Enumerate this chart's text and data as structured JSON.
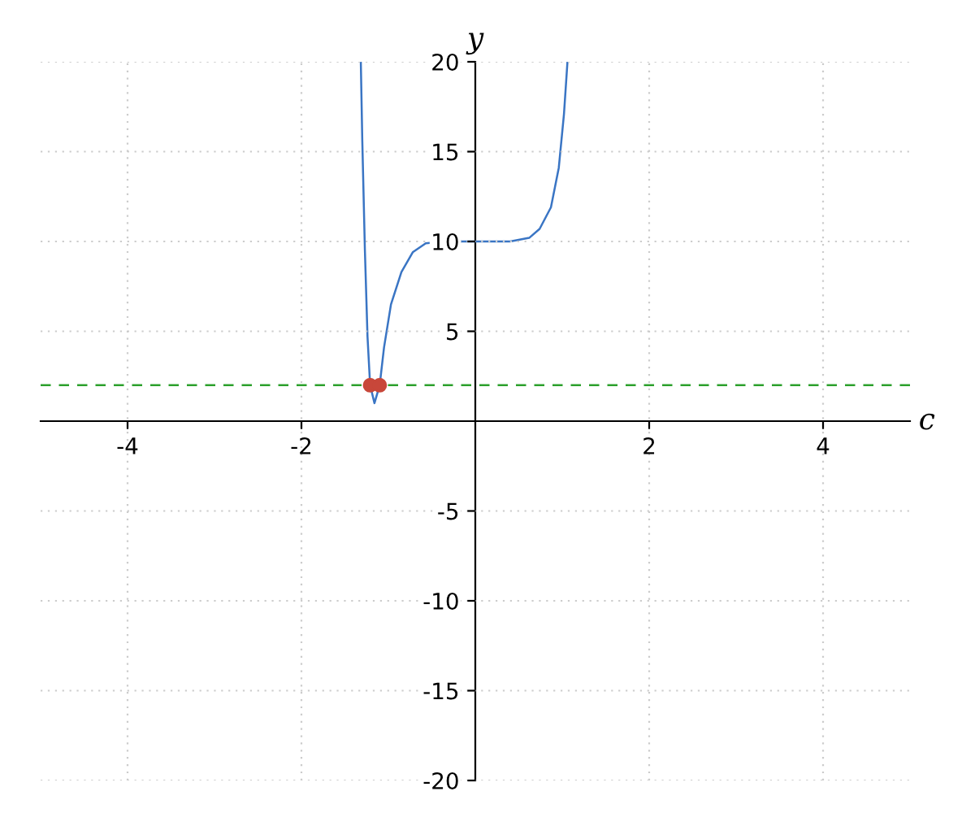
{
  "chart_data": {
    "type": "line",
    "xlabel": "c",
    "ylabel": "y",
    "xlim": [
      -5,
      5
    ],
    "ylim": [
      -20,
      20
    ],
    "xticks": [
      -4,
      -2,
      2,
      4
    ],
    "yticks": [
      -20,
      -15,
      -10,
      -5,
      5,
      10,
      15,
      20
    ],
    "grid": true,
    "series": [
      {
        "color": "#3a75c4",
        "x": [
          -1.317,
          -1.3,
          -1.27,
          -1.24,
          -1.21,
          -1.16,
          -1.1,
          -1.05,
          -0.97,
          -0.85,
          -0.72,
          -0.57,
          -0.35,
          0,
          0.4,
          0.62,
          0.74,
          0.87,
          0.96,
          1.02,
          1.06
        ],
        "values": [
          20,
          15.6,
          9.5,
          4.7,
          2.0,
          1.0,
          2.0,
          4.1,
          6.5,
          8.3,
          9.4,
          9.9,
          10,
          10,
          10,
          10.2,
          10.7,
          11.9,
          14.1,
          17.1,
          20
        ]
      },
      {
        "type": "scatter",
        "color": "#c8473a",
        "marker": "circle",
        "x": [
          -1.21,
          -1.1
        ],
        "values": [
          2,
          2
        ]
      }
    ],
    "ref_lines": [
      {
        "axis": "y",
        "value": 2,
        "color": "#2ca02c",
        "line_style": "dashed"
      }
    ]
  }
}
